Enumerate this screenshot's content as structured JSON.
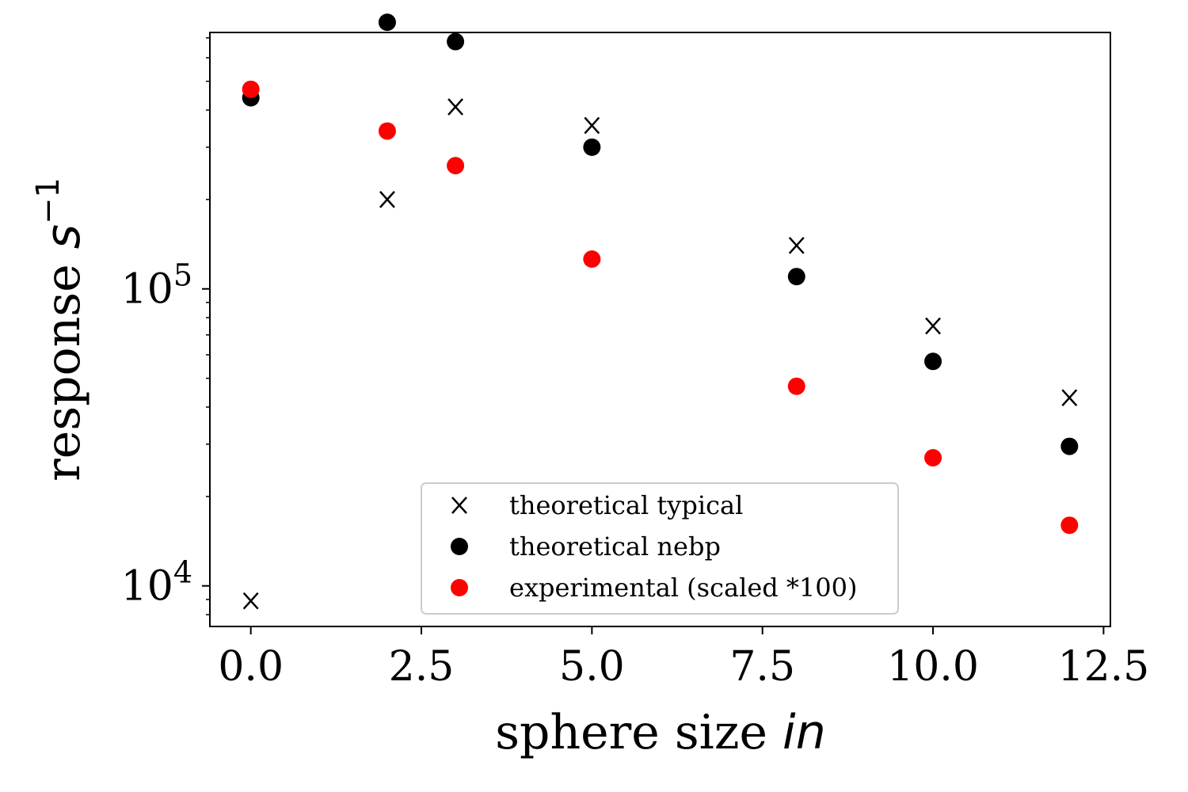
{
  "chart_data": {
    "type": "scatter",
    "xlabel": {
      "text": "sphere size ",
      "math": "in"
    },
    "ylabel": {
      "text": "response ",
      "math": "s",
      "sup": "−1"
    },
    "xlim": [
      -0.6,
      12.6
    ],
    "ylim": [
      7300,
      730000
    ],
    "yscale": "log",
    "xticks": [
      "0.0",
      "2.5",
      "5.0",
      "7.5",
      "10.0",
      "12.5"
    ],
    "xtick_values": [
      0,
      2.5,
      5,
      7.5,
      10,
      12.5
    ],
    "yticks": [
      {
        "base": "10",
        "exp": "4",
        "value": 10000
      },
      {
        "base": "10",
        "exp": "5",
        "value": 100000
      }
    ],
    "grid": false,
    "legend_position": "lower-center",
    "series": [
      {
        "name": "theoretical typical",
        "marker": "x",
        "color": "#000000",
        "x": [
          0,
          2,
          3,
          5,
          8,
          10,
          12
        ],
        "y": [
          8900,
          200000,
          410000,
          355000,
          140000,
          75000,
          43000
        ]
      },
      {
        "name": "theoretical nebp",
        "marker": "o",
        "color": "#000000",
        "x": [
          0,
          2,
          3,
          5,
          8,
          10,
          12
        ],
        "y": [
          440000,
          790000,
          680000,
          300000,
          110000,
          57000,
          29500
        ]
      },
      {
        "name": "experimental (scaled *100)",
        "marker": "o",
        "color": "#ff0000",
        "x": [
          0,
          2,
          3,
          5,
          8,
          10,
          12
        ],
        "y": [
          470000,
          340000,
          260000,
          126000,
          47000,
          27000,
          16000
        ]
      }
    ]
  }
}
